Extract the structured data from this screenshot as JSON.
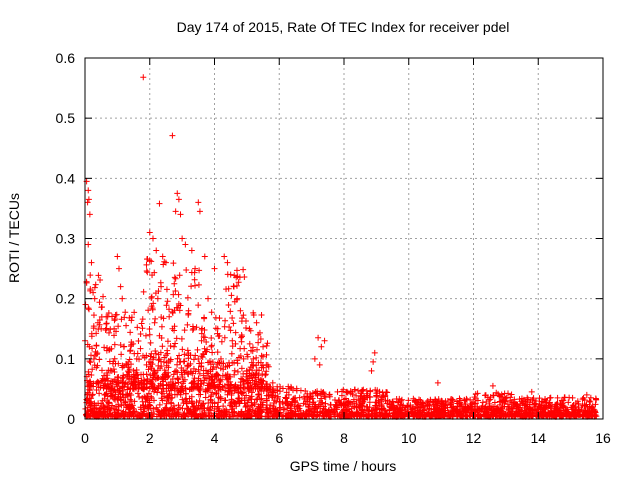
{
  "chart_data": {
    "type": "scatter",
    "title": "Day 174 of 2015, Rate Of TEC Index for receiver pdel",
    "xlabel": "GPS time / hours",
    "ylabel": "ROTI / TECUs",
    "xlim": [
      0,
      16
    ],
    "ylim": [
      0,
      0.6
    ],
    "x_ticks": [
      0,
      2,
      4,
      6,
      8,
      10,
      12,
      14,
      16
    ],
    "y_ticks": [
      0,
      0.1,
      0.2,
      0.3,
      0.4,
      0.5,
      0.6
    ],
    "x_tick_labels": [
      "0",
      "2",
      "4",
      "6",
      "8",
      "10",
      "12",
      "14",
      "16"
    ],
    "y_tick_labels": [
      "0",
      "0.1",
      "0.2",
      "0.3",
      "0.4",
      "0.5",
      "0.6"
    ],
    "grid": true,
    "marker": "plus",
    "color": "#ff0000",
    "data_range_x": [
      0,
      15.8
    ],
    "series": [
      {
        "name": "ROTI",
        "points": [
          [
            1.8,
            0.568
          ],
          [
            2.7,
            0.471
          ],
          [
            0.05,
            0.395
          ],
          [
            0.1,
            0.38
          ],
          [
            0.12,
            0.365
          ],
          [
            0.08,
            0.36
          ],
          [
            0.15,
            0.34
          ],
          [
            2.85,
            0.375
          ],
          [
            2.9,
            0.365
          ],
          [
            2.8,
            0.345
          ],
          [
            2.95,
            0.34
          ],
          [
            3.5,
            0.36
          ],
          [
            3.55,
            0.345
          ],
          [
            2.3,
            0.358
          ],
          [
            2.0,
            0.31
          ],
          [
            2.1,
            0.3
          ],
          [
            2.2,
            0.28
          ],
          [
            2.4,
            0.27
          ],
          [
            2.5,
            0.26
          ],
          [
            3.0,
            0.3
          ],
          [
            3.1,
            0.29
          ],
          [
            3.3,
            0.28
          ],
          [
            3.4,
            0.25
          ],
          [
            3.7,
            0.27
          ],
          [
            4.0,
            0.25
          ],
          [
            4.3,
            0.27
          ],
          [
            4.4,
            0.26
          ],
          [
            4.5,
            0.24
          ],
          [
            4.6,
            0.22
          ],
          [
            4.7,
            0.2
          ],
          [
            4.8,
            0.18
          ],
          [
            0.1,
            0.29
          ],
          [
            0.2,
            0.26
          ],
          [
            0.25,
            0.21
          ],
          [
            0.3,
            0.2
          ],
          [
            0.4,
            0.16
          ],
          [
            0.5,
            0.15
          ],
          [
            0.7,
            0.17
          ],
          [
            0.9,
            0.15
          ],
          [
            1.0,
            0.27
          ],
          [
            1.05,
            0.25
          ],
          [
            1.1,
            0.22
          ],
          [
            1.15,
            0.2
          ],
          [
            1.2,
            0.12
          ],
          [
            1.3,
            0.09
          ],
          [
            1.5,
            0.08
          ],
          [
            1.6,
            0.1
          ],
          [
            1.9,
            0.09
          ],
          [
            2.0,
            0.14
          ],
          [
            2.15,
            0.16
          ],
          [
            2.25,
            0.2
          ],
          [
            2.35,
            0.22
          ],
          [
            2.6,
            0.17
          ],
          [
            2.7,
            0.15
          ],
          [
            2.75,
            0.12
          ],
          [
            3.2,
            0.18
          ],
          [
            3.35,
            0.15
          ],
          [
            3.6,
            0.13
          ],
          [
            3.8,
            0.2
          ],
          [
            3.9,
            0.12
          ],
          [
            4.1,
            0.15
          ],
          [
            4.2,
            0.1
          ],
          [
            4.55,
            0.13
          ],
          [
            4.9,
            0.1
          ],
          [
            5.0,
            0.08
          ],
          [
            5.2,
            0.1
          ],
          [
            5.3,
            0.16
          ],
          [
            5.35,
            0.14
          ],
          [
            5.5,
            0.12
          ],
          [
            5.6,
            0.09
          ],
          [
            5.8,
            0.06
          ],
          [
            7.2,
            0.135
          ],
          [
            7.3,
            0.12
          ],
          [
            7.4,
            0.13
          ],
          [
            7.1,
            0.1
          ],
          [
            7.25,
            0.09
          ],
          [
            8.95,
            0.11
          ],
          [
            8.9,
            0.095
          ],
          [
            8.85,
            0.08
          ],
          [
            6.3,
            0.05
          ],
          [
            7.8,
            0.045
          ],
          [
            10.9,
            0.06
          ],
          [
            12.6,
            0.055
          ],
          [
            13.8,
            0.045
          ],
          [
            15.5,
            0.04
          ]
        ]
      }
    ]
  }
}
